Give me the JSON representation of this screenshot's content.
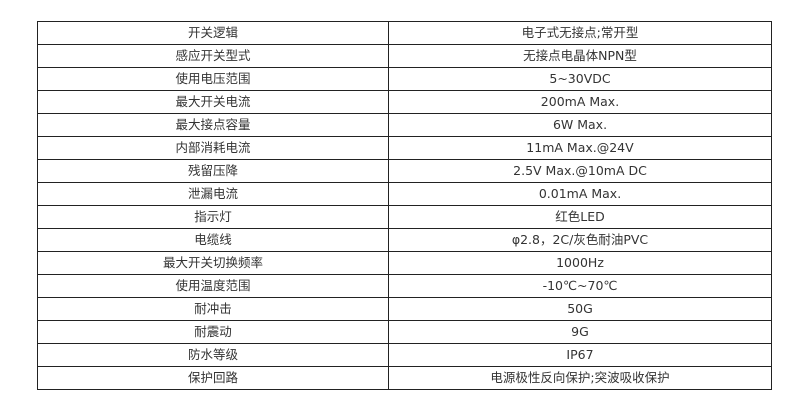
{
  "spec_table": {
    "rows": [
      {
        "label": "开关逻辑",
        "value": "电子式无接点;常开型"
      },
      {
        "label": "感应开关型式",
        "value": "无接点电晶体NPN型"
      },
      {
        "label": "使用电压范围",
        "value": "5~30VDC"
      },
      {
        "label": "最大开关电流",
        "value": "200mA Max."
      },
      {
        "label": "最大接点容量",
        "value": "6W Max."
      },
      {
        "label": "内部消耗电流",
        "value": "11mA Max.@24V"
      },
      {
        "label": "残留压降",
        "value": "2.5V Max.@10mA DC"
      },
      {
        "label": "泄漏电流",
        "value": "0.01mA Max."
      },
      {
        "label": "指示灯",
        "value": "红色LED"
      },
      {
        "label": "电缆线",
        "value": "φ2.8，2C/灰色耐油PVC"
      },
      {
        "label": "最大开关切换频率",
        "value": "1000Hz"
      },
      {
        "label": "使用温度范围",
        "value": "-10℃~70℃"
      },
      {
        "label": "耐冲击",
        "value": "50G"
      },
      {
        "label": "耐震动",
        "value": "9G"
      },
      {
        "label": "防水等级",
        "value": "IP67"
      },
      {
        "label": "保护回路",
        "value": "电源极性反向保护;突波吸收保护"
      }
    ]
  }
}
